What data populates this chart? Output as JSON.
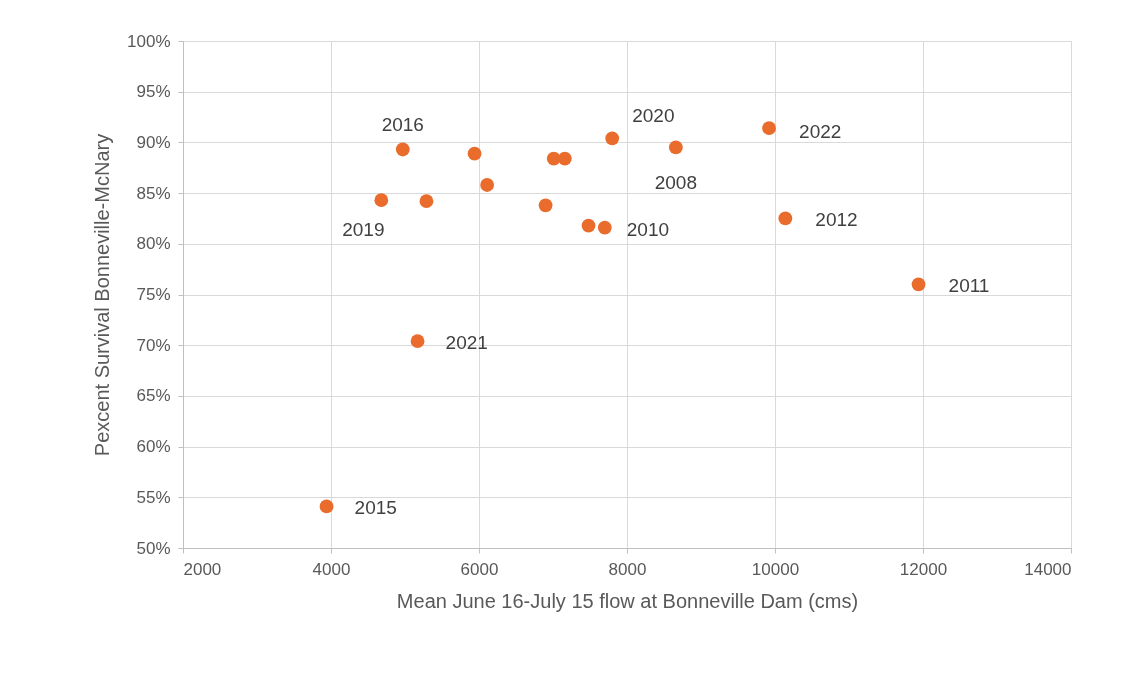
{
  "chart_data": {
    "type": "scatter",
    "xlabel": "Mean June 16-July 15 flow at Bonneville Dam (cms)",
    "ylabel": "Pexcent Survival Bonneville-McNary",
    "x": [
      3940,
      4680,
      4970,
      5170,
      5290,
      5940,
      6110,
      6900,
      7010,
      7160,
      7480,
      7700,
      7800,
      8660,
      9920,
      10140,
      11940
    ],
    "series": [
      {
        "color": "#e96c2c",
        "values": [
          54.1,
          84.3,
          89.3,
          70.4,
          84.2,
          88.9,
          85.8,
          83.8,
          88.4,
          88.4,
          81.8,
          81.6,
          90.4,
          89.5,
          91.4,
          82.5,
          76.0
        ]
      }
    ],
    "annotations": [
      {
        "text": "2015",
        "x": 3940,
        "y": 54.1
      },
      {
        "text": "2019",
        "x": 4680,
        "y": 84.3
      },
      {
        "text": "2016",
        "x": 4970,
        "y": 89.3
      },
      {
        "text": "2021",
        "x": 5170,
        "y": 70.4
      },
      {
        "text": "2010",
        "x": 7700,
        "y": 81.6
      },
      {
        "text": "2020",
        "x": 7800,
        "y": 90.4
      },
      {
        "text": "2008",
        "x": 8660,
        "y": 89.5
      },
      {
        "text": "2022",
        "x": 9920,
        "y": 91.4
      },
      {
        "text": "2012",
        "x": 10140,
        "y": 82.5
      },
      {
        "text": "2011",
        "x": 11940,
        "y": 76.0
      }
    ],
    "xlim": [
      2000,
      14000
    ],
    "xticks": [
      2000,
      4000,
      6000,
      8000,
      10000,
      12000,
      14000
    ],
    "ylim": [
      50,
      100
    ],
    "yticks": [
      {
        "value": 50,
        "label": "50%"
      },
      {
        "value": 55,
        "label": "55%"
      },
      {
        "value": 60,
        "label": "60%"
      },
      {
        "value": 65,
        "label": "65%"
      },
      {
        "value": 70,
        "label": "70%"
      },
      {
        "value": 75,
        "label": "75%"
      },
      {
        "value": 80,
        "label": "80%"
      },
      {
        "value": 85,
        "label": "85%"
      },
      {
        "value": 90,
        "label": "90%"
      },
      {
        "value": 95,
        "label": "95%"
      },
      {
        "value": 100,
        "label": "100%"
      }
    ],
    "grid": true,
    "marker": "circle"
  }
}
